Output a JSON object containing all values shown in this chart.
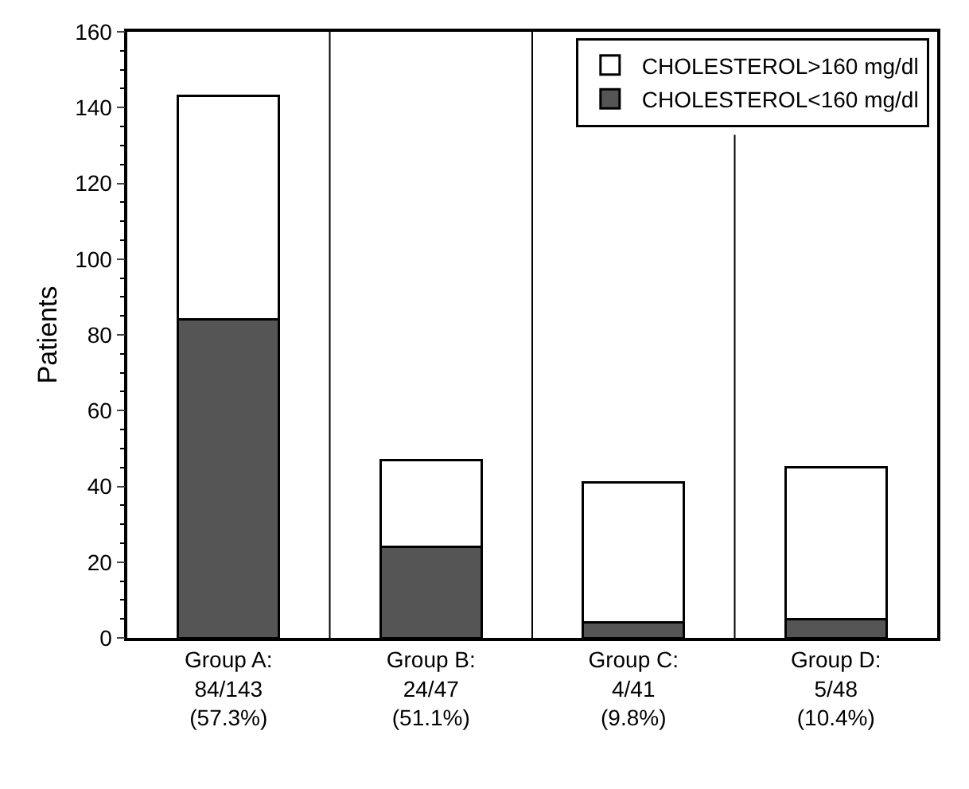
{
  "chart_data": {
    "type": "bar",
    "stacked": true,
    "ylabel": "Patients",
    "categories": [
      "Group A:\n84/143\n(57.3%)",
      "Group B:\n24/47\n(51.1%)",
      "Group C:\n4/41\n(9.8%)",
      "Group D:\n5/48\n(10.4%)"
    ],
    "series": [
      {
        "name": "CHOLESTEROL<160 mg/dl",
        "color": "#555555",
        "values": [
          84,
          24,
          4,
          5
        ]
      },
      {
        "name": "CHOLESTEROL>160 mg/dl",
        "color": "#ffffff",
        "values": [
          59,
          23,
          37,
          40
        ]
      }
    ],
    "ylim": [
      0,
      160
    ],
    "yticks": [
      0,
      20,
      40,
      60,
      80,
      100,
      120,
      140,
      160
    ],
    "grid": "x",
    "legend": "top right"
  }
}
